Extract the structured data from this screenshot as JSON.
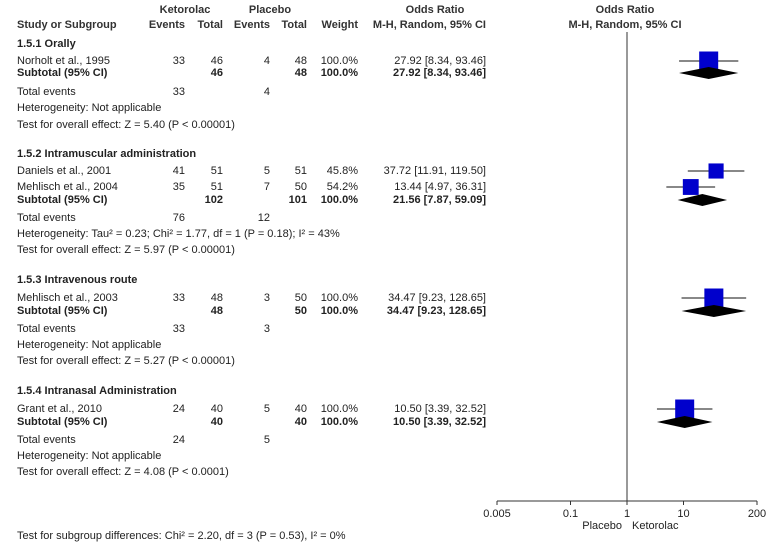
{
  "header": {
    "study": "Study or Subgroup",
    "ketorolac": "Ketorolac",
    "placebo": "Placebo",
    "events": "Events",
    "total": "Total",
    "weight": "Weight",
    "or_label": "Odds Ratio",
    "or_method": "M-H, Random, 95% CI",
    "plot_label": "Odds Ratio",
    "plot_method": "M-H, Random, 95% CI"
  },
  "groups": [
    {
      "title": "1.5.1 Orally",
      "studies": [
        {
          "name": "Norholt et al., 1995",
          "k_events": "33",
          "k_total": "46",
          "p_events": "4",
          "p_total": "48",
          "weight": "100.0%",
          "ci": "27.92 [8.34, 93.46]"
        }
      ],
      "subtotal": {
        "label": "Subtotal (95% CI)",
        "k_total": "46",
        "p_total": "48",
        "weight": "100.0%",
        "ci": "27.92 [8.34, 93.46]"
      },
      "total_events": {
        "label": "Total events",
        "k": "33",
        "p": "4"
      },
      "heterogeneity": "Heterogeneity: Not applicable",
      "effect": "Test for overall effect: Z = 5.40 (P < 0.00001)"
    },
    {
      "title": "1.5.2 Intramuscular administration",
      "studies": [
        {
          "name": "Daniels et al., 2001",
          "k_events": "41",
          "k_total": "51",
          "p_events": "5",
          "p_total": "51",
          "weight": "45.8%",
          "ci": "37.72 [11.91, 119.50]"
        },
        {
          "name": "Mehlisch et al., 2004",
          "k_events": "35",
          "k_total": "51",
          "p_events": "7",
          "p_total": "50",
          "weight": "54.2%",
          "ci": "13.44 [4.97, 36.31]"
        }
      ],
      "subtotal": {
        "label": "Subtotal (95% CI)",
        "k_total": "102",
        "p_total": "101",
        "weight": "100.0%",
        "ci": "21.56 [7.87, 59.09]"
      },
      "total_events": {
        "label": "Total events",
        "k": "76",
        "p": "12"
      },
      "heterogeneity": "Heterogeneity: Tau² = 0.23; Chi² = 1.77, df = 1 (P = 0.18); I² = 43%",
      "effect": "Test for overall effect: Z = 5.97 (P < 0.00001)"
    },
    {
      "title": "1.5.3 Intravenous route",
      "studies": [
        {
          "name": "Mehlisch et al., 2003",
          "k_events": "33",
          "k_total": "48",
          "p_events": "3",
          "p_total": "50",
          "weight": "100.0%",
          "ci": "34.47 [9.23, 128.65]"
        }
      ],
      "subtotal": {
        "label": "Subtotal (95% CI)",
        "k_total": "48",
        "p_total": "50",
        "weight": "100.0%",
        "ci": "34.47 [9.23, 128.65]"
      },
      "total_events": {
        "label": "Total events",
        "k": "33",
        "p": "3"
      },
      "heterogeneity": "Heterogeneity: Not applicable",
      "effect": "Test for overall effect: Z = 5.27 (P < 0.00001)"
    },
    {
      "title": "1.5.4 Intranasal Administration",
      "studies": [
        {
          "name": "Grant et al., 2010",
          "k_events": "24",
          "k_total": "40",
          "p_events": "5",
          "p_total": "40",
          "weight": "100.0%",
          "ci": "10.50 [3.39, 32.52]"
        }
      ],
      "subtotal": {
        "label": "Subtotal (95% CI)",
        "k_total": "40",
        "p_total": "40",
        "weight": "100.0%",
        "ci": "10.50 [3.39, 32.52]"
      },
      "total_events": {
        "label": "Total events",
        "k": "24",
        "p": "5"
      },
      "heterogeneity": "Heterogeneity: Not applicable",
      "effect": "Test for overall effect: Z = 4.08 (P < 0.0001)"
    }
  ],
  "subgroup_test": "Test for subgroup differences: Chi² = 2.20, df = 3 (P = 0.53), I² = 0%",
  "chart_data": {
    "type": "forest",
    "scale": "log",
    "xlim": [
      0.005,
      200
    ],
    "ticks": [
      0.005,
      0.1,
      1,
      10,
      200
    ],
    "tick_labels": [
      "0.005",
      "0.1",
      "1",
      "10",
      "200"
    ],
    "favours_left": "Placebo",
    "favours_right": "Ketorolac",
    "null_value": 1,
    "studies": [
      {
        "name": "Norholt et al., 1995",
        "or": 27.92,
        "lo": 8.34,
        "hi": 93.46,
        "weight": 100.0
      },
      {
        "name": "Daniels et al., 2001",
        "or": 37.72,
        "lo": 11.91,
        "hi": 119.5,
        "weight": 45.8
      },
      {
        "name": "Mehlisch et al., 2004",
        "or": 13.44,
        "lo": 4.97,
        "hi": 36.31,
        "weight": 54.2
      },
      {
        "name": "Mehlisch et al., 2003",
        "or": 34.47,
        "lo": 9.23,
        "hi": 128.65,
        "weight": 100.0
      },
      {
        "name": "Grant et al., 2010",
        "or": 10.5,
        "lo": 3.39,
        "hi": 32.52,
        "weight": 100.0
      }
    ],
    "subtotals": [
      {
        "group": "1.5.1 Orally",
        "or": 27.92,
        "lo": 8.34,
        "hi": 93.46
      },
      {
        "group": "1.5.2 Intramuscular administration",
        "or": 21.56,
        "lo": 7.87,
        "hi": 59.09
      },
      {
        "group": "1.5.3 Intravenous route",
        "or": 34.47,
        "lo": 9.23,
        "hi": 128.65
      },
      {
        "group": "1.5.4 Intranasal Administration",
        "or": 10.5,
        "lo": 3.39,
        "hi": 32.52
      }
    ]
  }
}
